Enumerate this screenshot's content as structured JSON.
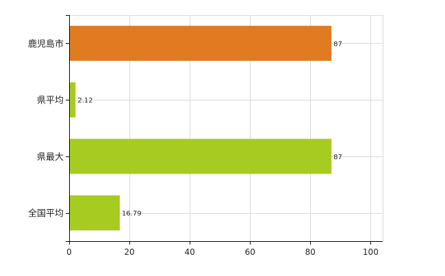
{
  "chart_data": {
    "type": "bar",
    "orientation": "horizontal",
    "categories": [
      "鹿児島市",
      "県平均",
      "県最大",
      "全国平均"
    ],
    "values": [
      87,
      2.12,
      87,
      16.79
    ],
    "value_labels": [
      "87",
      "2.12",
      "87",
      "16.79"
    ],
    "bar_colors": [
      "#e07b22",
      "#a6cc22",
      "#a6cc22",
      "#a6cc22"
    ],
    "title": "",
    "xlabel": "",
    "ylabel": "",
    "xlim": [
      0,
      104
    ],
    "xticks": [
      0,
      20,
      40,
      60,
      80,
      100
    ],
    "xtick_labels": [
      "0",
      "20",
      "40",
      "60",
      "80",
      "100"
    ],
    "grid": true,
    "grid_color": "#d9d9d9",
    "axis_color": "#000000"
  }
}
